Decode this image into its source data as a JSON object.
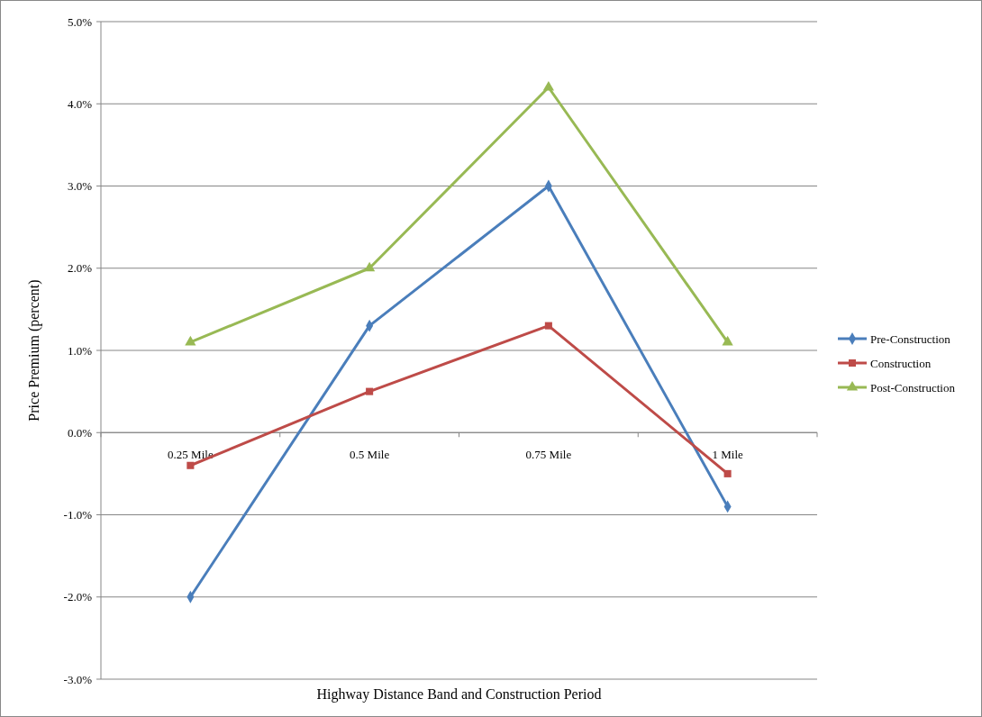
{
  "chart_data": {
    "type": "line",
    "xlabel": "Highway Distance Band and Construction Period",
    "ylabel": "Price Premium (percent)",
    "categories": [
      "0.25 Mile",
      "0.5 Mile",
      "0.75 Mile",
      "1 Mile"
    ],
    "series": [
      {
        "name": "Pre-Construction",
        "color": "#4a7ebb",
        "marker": "diamond",
        "values": [
          -2.0,
          1.3,
          3.0,
          -0.9
        ]
      },
      {
        "name": "Construction",
        "color": "#be4b48",
        "marker": "square",
        "values": [
          -0.4,
          0.5,
          1.3,
          -0.5
        ]
      },
      {
        "name": "Post-Construction",
        "color": "#98b954",
        "marker": "triangle",
        "values": [
          1.1,
          2.0,
          4.2,
          1.1
        ]
      }
    ],
    "ylim": [
      -3,
      5
    ],
    "yticks": [
      {
        "value": -3,
        "label": "-3.0%"
      },
      {
        "value": -2,
        "label": "-2.0%"
      },
      {
        "value": -1,
        "label": "-1.0%"
      },
      {
        "value": 0,
        "label": "0.0%"
      },
      {
        "value": 1,
        "label": "1.0%"
      },
      {
        "value": 2,
        "label": "2.0%"
      },
      {
        "value": 3,
        "label": "3.0%"
      },
      {
        "value": 4,
        "label": "4.0%"
      },
      {
        "value": 5,
        "label": "5.0%"
      }
    ],
    "grid": "y",
    "legend": "right",
    "line_style": "solid"
  }
}
